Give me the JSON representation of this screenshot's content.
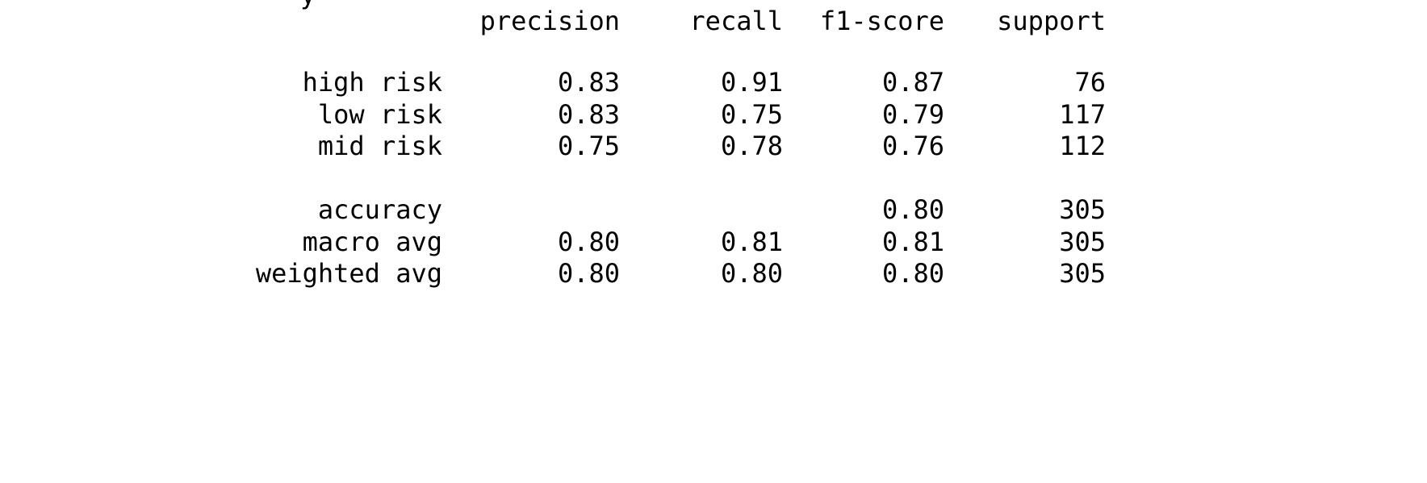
{
  "header": {
    "clipped_text": "y",
    "columns": [
      "precision",
      "recall",
      "f1-score",
      "support"
    ]
  },
  "rows": [
    {
      "label": "high risk",
      "precision": "0.83",
      "recall": "0.91",
      "f1": "0.87",
      "support": "76"
    },
    {
      "label": "low risk",
      "precision": "0.83",
      "recall": "0.75",
      "f1": "0.79",
      "support": "117"
    },
    {
      "label": "mid risk",
      "precision": "0.75",
      "recall": "0.78",
      "f1": "0.76",
      "support": "112"
    }
  ],
  "summary": [
    {
      "label": "accuracy",
      "precision": "",
      "recall": "",
      "f1": "0.80",
      "support": "305"
    },
    {
      "label": "macro avg",
      "precision": "0.80",
      "recall": "0.81",
      "f1": "0.81",
      "support": "305"
    },
    {
      "label": "weighted avg",
      "precision": "0.80",
      "recall": "0.80",
      "f1": "0.80",
      "support": "305"
    }
  ]
}
